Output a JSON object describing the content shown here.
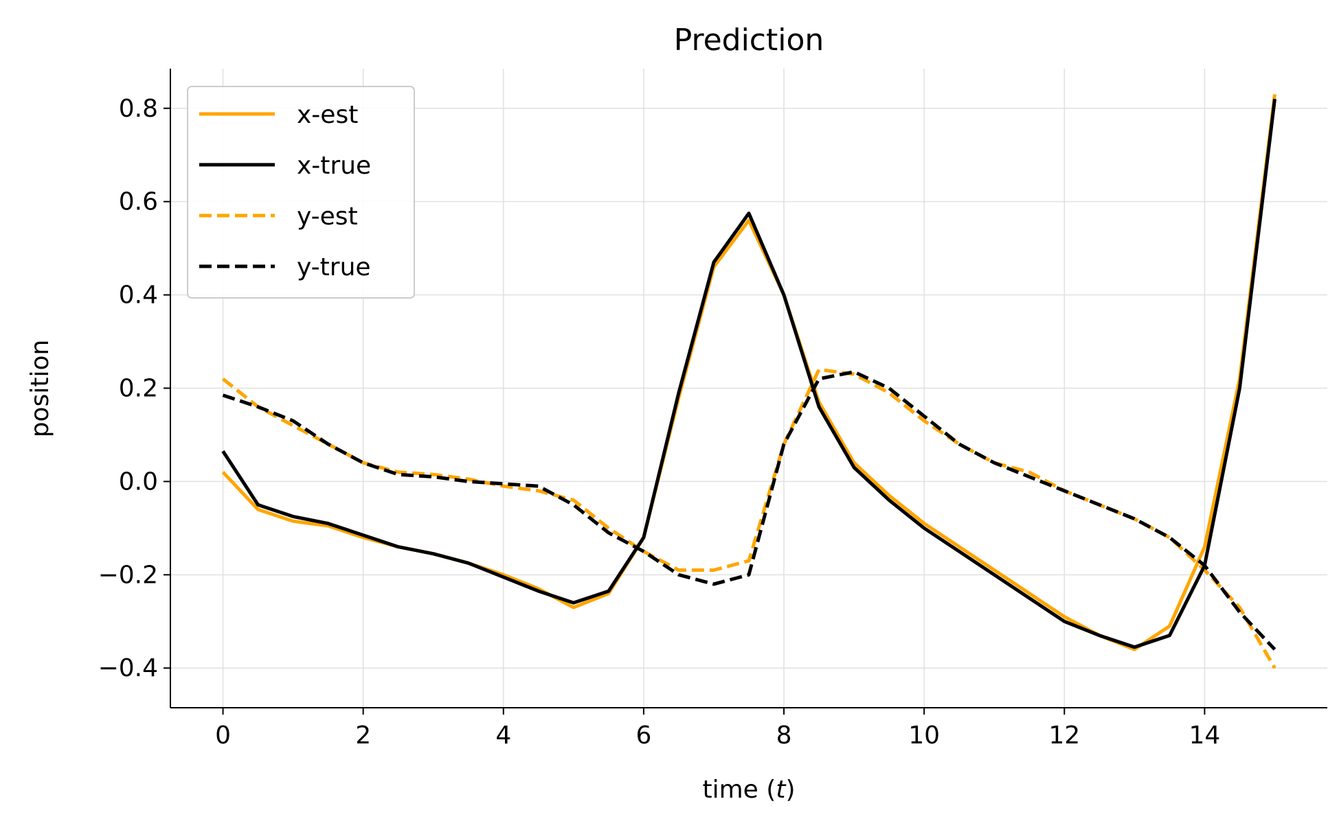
{
  "chart_data": {
    "type": "line",
    "title": "Prediction",
    "xlabel": "time (",
    "xlabel_var": "t",
    "xlabel_close": ")",
    "ylabel": "position",
    "xlim": [
      -0.75,
      15.75
    ],
    "ylim": [
      -0.485,
      0.885
    ],
    "xticks": [
      0,
      2,
      4,
      6,
      8,
      10,
      12,
      14
    ],
    "xtick_labels": [
      "0",
      "2",
      "4",
      "6",
      "8",
      "10",
      "12",
      "14"
    ],
    "yticks": [
      0.8,
      0.6,
      0.4,
      0.2,
      0.0,
      -0.2,
      -0.4
    ],
    "ytick_labels": [
      "0.8",
      "0.6",
      "0.4",
      "0.2",
      "0.0",
      "−0.2",
      "−0.4"
    ],
    "grid": true,
    "legend_position": "top-left",
    "x": [
      0,
      0.5,
      1,
      1.5,
      2,
      2.5,
      3,
      3.5,
      4,
      4.5,
      5,
      5.5,
      6,
      6.5,
      7,
      7.5,
      8,
      8.5,
      9,
      9.5,
      10,
      10.5,
      11,
      11.5,
      12,
      12.5,
      13,
      13.5,
      14,
      14.5,
      15
    ],
    "series": [
      {
        "name": "x-est",
        "color": "#ffa500",
        "style": "solid",
        "values": [
          0.02,
          -0.06,
          -0.085,
          -0.095,
          -0.12,
          -0.14,
          -0.155,
          -0.175,
          -0.2,
          -0.23,
          -0.27,
          -0.24,
          -0.12,
          0.18,
          0.46,
          0.56,
          0.4,
          0.17,
          0.04,
          -0.03,
          -0.09,
          -0.14,
          -0.19,
          -0.24,
          -0.29,
          -0.33,
          -0.36,
          -0.31,
          -0.14,
          0.22,
          0.83
        ]
      },
      {
        "name": "x-true",
        "color": "#000000",
        "style": "solid",
        "values": [
          0.065,
          -0.05,
          -0.075,
          -0.09,
          -0.115,
          -0.14,
          -0.155,
          -0.175,
          -0.205,
          -0.235,
          -0.26,
          -0.235,
          -0.12,
          0.19,
          0.47,
          0.575,
          0.4,
          0.16,
          0.03,
          -0.04,
          -0.1,
          -0.15,
          -0.2,
          -0.25,
          -0.3,
          -0.33,
          -0.355,
          -0.33,
          -0.18,
          0.2,
          0.82
        ]
      },
      {
        "name": "y-est",
        "color": "#ffa500",
        "style": "dashed",
        "values": [
          0.22,
          0.16,
          0.12,
          0.08,
          0.04,
          0.02,
          0.015,
          0.005,
          -0.01,
          -0.02,
          -0.04,
          -0.1,
          -0.15,
          -0.19,
          -0.19,
          -0.17,
          0.08,
          0.24,
          0.23,
          0.19,
          0.13,
          0.08,
          0.04,
          0.02,
          -0.02,
          -0.05,
          -0.08,
          -0.12,
          -0.19,
          -0.27,
          -0.4
        ]
      },
      {
        "name": "y-true",
        "color": "#000000",
        "style": "dashed",
        "values": [
          0.185,
          0.16,
          0.13,
          0.08,
          0.04,
          0.015,
          0.01,
          0.0,
          -0.005,
          -0.01,
          -0.05,
          -0.11,
          -0.15,
          -0.2,
          -0.22,
          -0.2,
          0.08,
          0.22,
          0.235,
          0.2,
          0.14,
          0.08,
          0.04,
          0.01,
          -0.02,
          -0.05,
          -0.08,
          -0.12,
          -0.18,
          -0.28,
          -0.36
        ]
      }
    ]
  }
}
